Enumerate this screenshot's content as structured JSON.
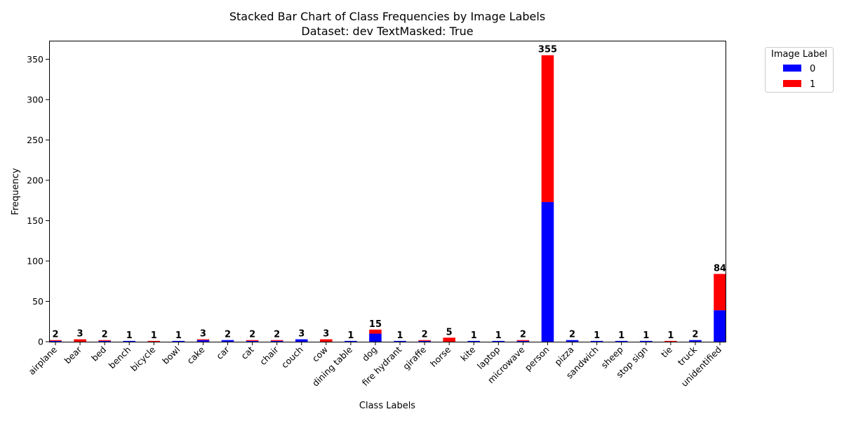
{
  "chart_data": {
    "type": "bar",
    "stacked": true,
    "title": "Stacked Bar Chart of Class Frequencies by Image Labels",
    "subtitle": "Dataset: dev TextMasked: True",
    "xlabel": "Class Labels",
    "ylabel": "Frequency",
    "ylim": [
      0,
      373
    ],
    "yticks": [
      0,
      50,
      100,
      150,
      200,
      250,
      300,
      350
    ],
    "grid": false,
    "legend": {
      "title": "Image Label",
      "placement": "outside-top-right"
    },
    "categories": [
      "airplane",
      "bear",
      "bed",
      "bench",
      "bicycle",
      "bowl",
      "cake",
      "car",
      "cat",
      "chair",
      "couch",
      "cow",
      "dining table",
      "dog",
      "fire hydrant",
      "giraffe",
      "horse",
      "kite",
      "laptop",
      "microwave",
      "person",
      "pizza",
      "sandwich",
      "sheep",
      "stop sign",
      "tie",
      "truck",
      "unidentified"
    ],
    "series": [
      {
        "name": "0",
        "color": "#0000ff",
        "values": [
          1,
          0,
          1,
          1,
          0,
          1,
          2,
          2,
          1,
          1,
          3,
          0,
          1,
          10,
          1,
          1,
          0,
          1,
          1,
          1,
          173,
          2,
          1,
          1,
          1,
          0,
          2,
          39
        ]
      },
      {
        "name": "1",
        "color": "#ff0000",
        "values": [
          1,
          3,
          1,
          0,
          1,
          0,
          1,
          0,
          1,
          1,
          0,
          3,
          0,
          5,
          0,
          1,
          5,
          0,
          0,
          1,
          182,
          0,
          0,
          0,
          0,
          1,
          0,
          45
        ]
      }
    ],
    "totals": [
      "2",
      "3",
      "2",
      "1",
      "1",
      "1",
      "3",
      "2",
      "2",
      "2",
      "3",
      "3",
      "1",
      "15",
      "1",
      "2",
      "5",
      "1",
      "1",
      "2",
      "355",
      "2",
      "1",
      "1",
      "1",
      "1",
      "2",
      "84"
    ]
  }
}
